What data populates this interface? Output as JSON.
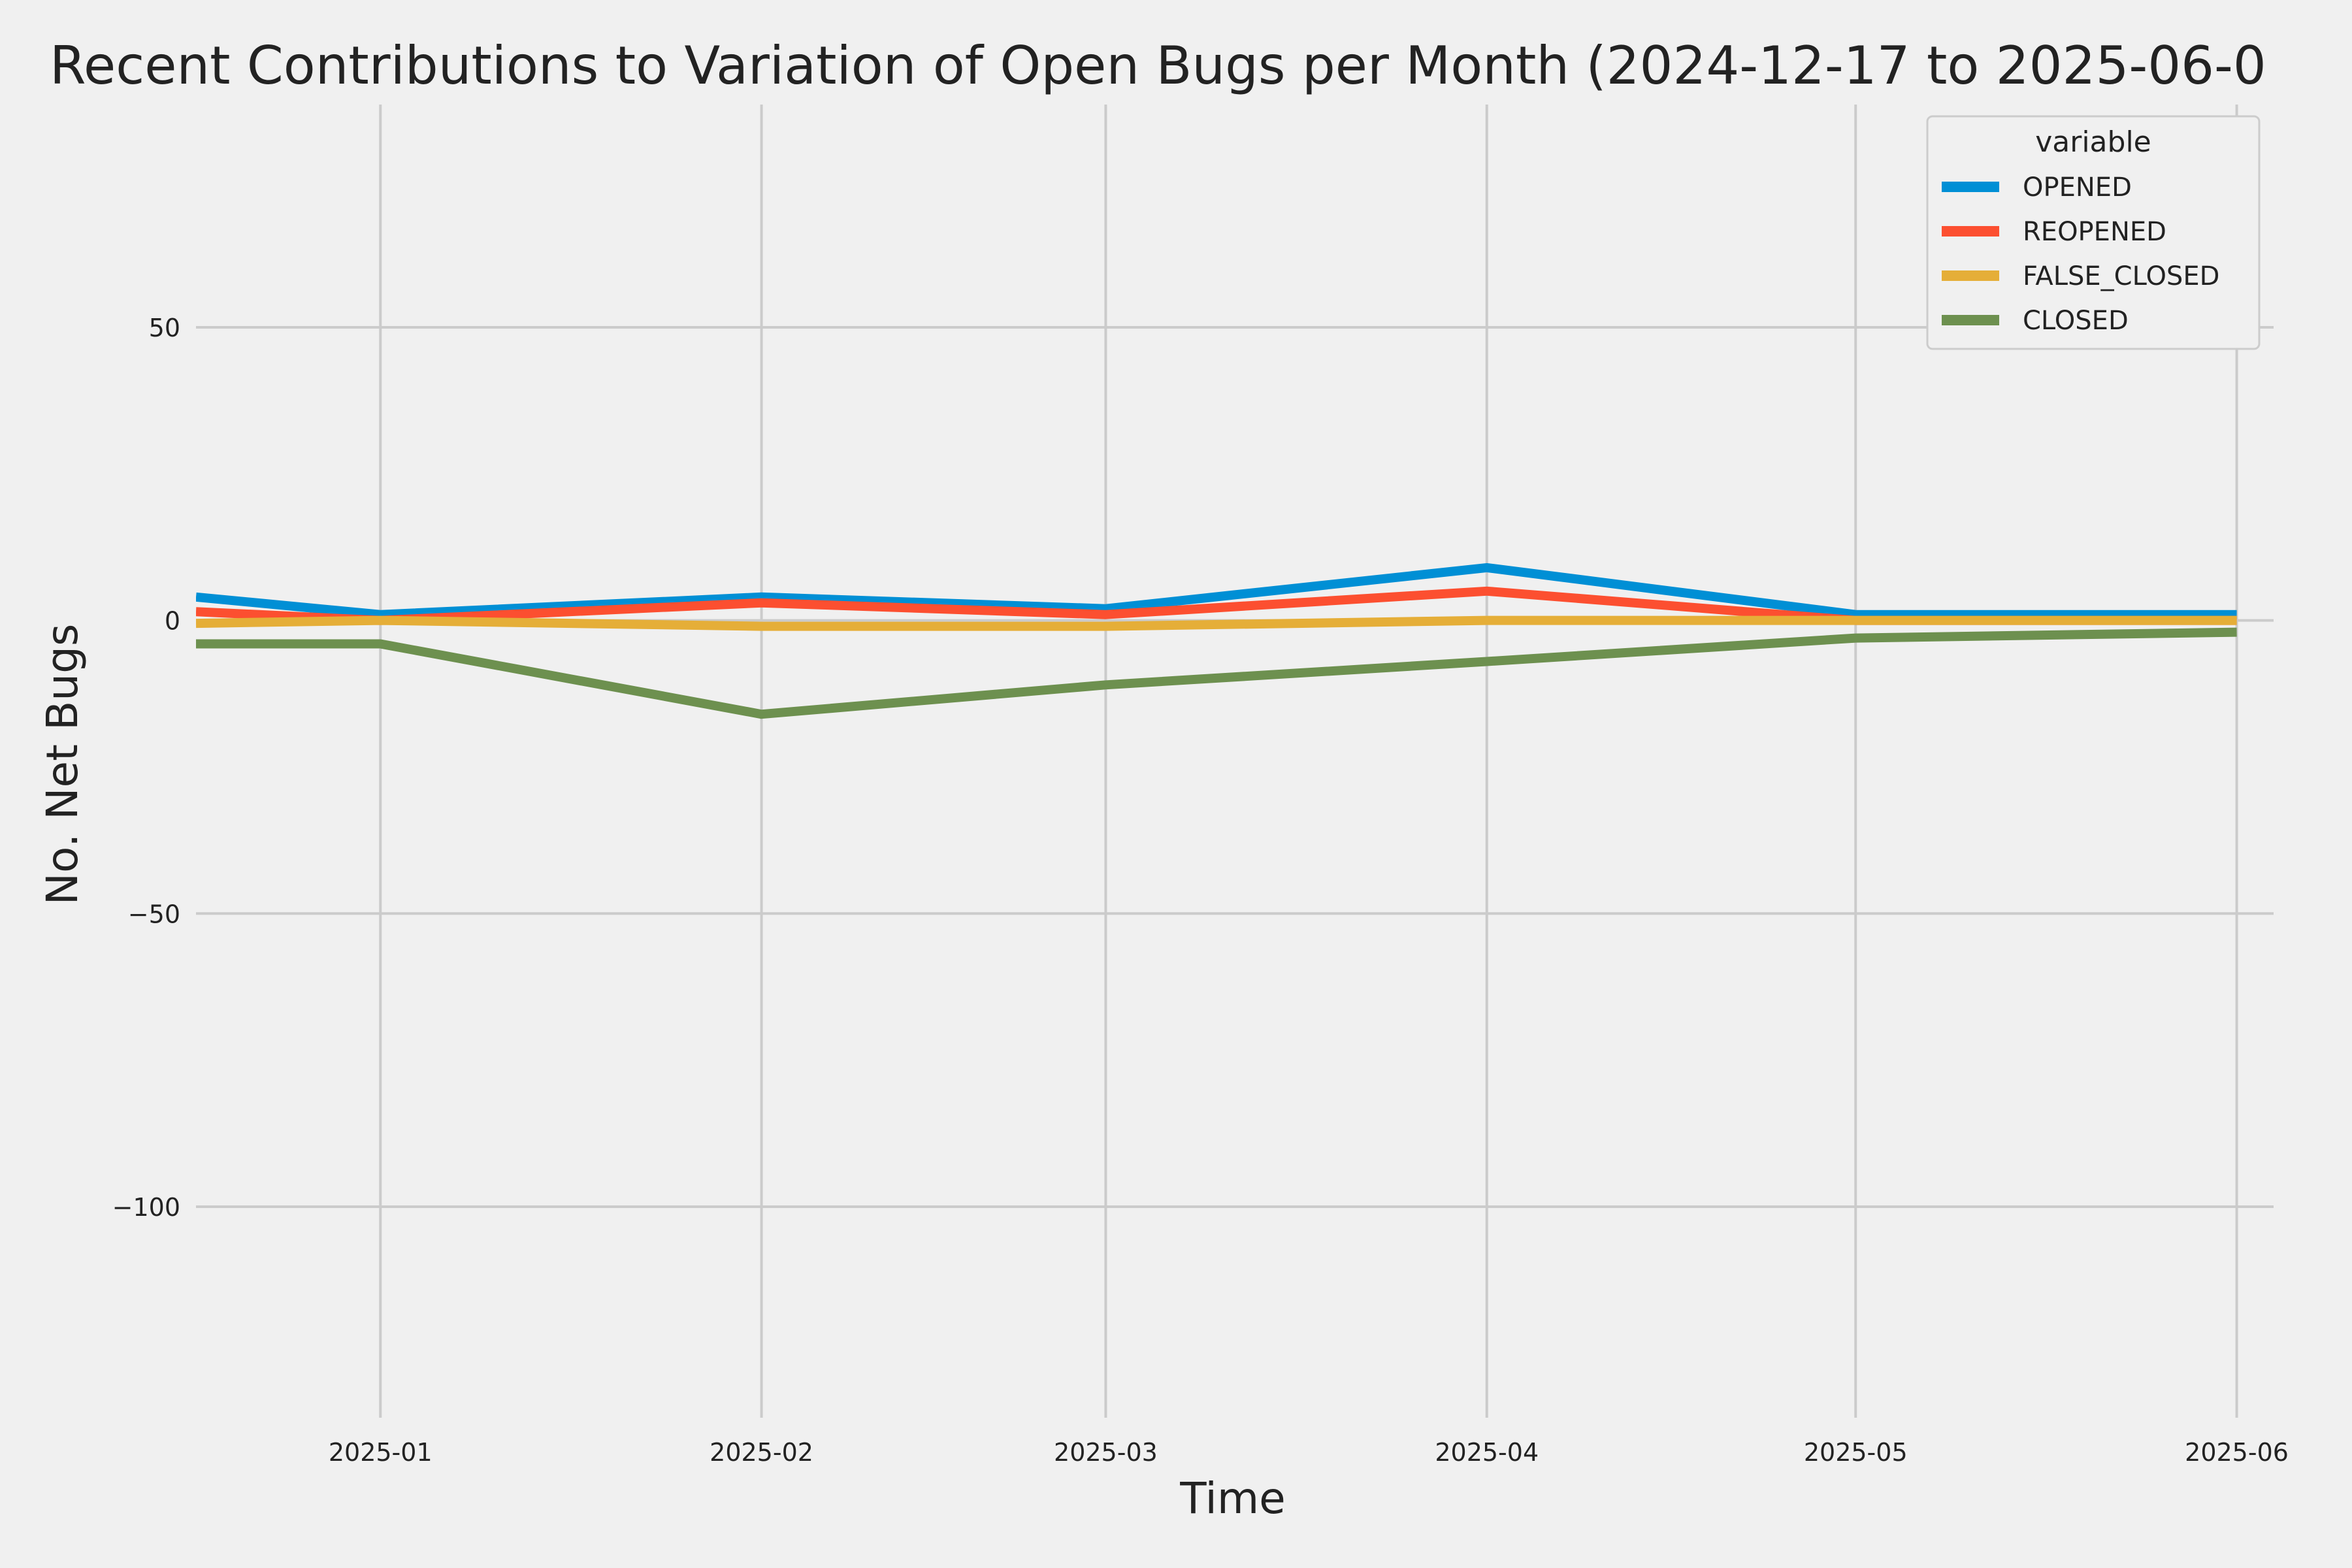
{
  "chart_data": {
    "type": "line",
    "title": "Recent Contributions to Variation of Open Bugs per Month (2024-12-17 to 2025-06-0",
    "xlabel": "Time",
    "ylabel": "No. Net Bugs",
    "x": [
      "2024-12-17",
      "2025-01-01",
      "2025-02-01",
      "2025-03-01",
      "2025-04-01",
      "2025-05-01",
      "2025-06-01"
    ],
    "xlim": [
      "2024-12-17",
      "2025-06-04"
    ],
    "ylim": [
      -136,
      88
    ],
    "x_ticks": [
      "2025-01-01",
      "2025-02-01",
      "2025-03-01",
      "2025-04-01",
      "2025-05-01",
      "2025-06-01"
    ],
    "x_tick_labels": [
      "2025-01",
      "2025-02",
      "2025-03",
      "2025-04",
      "2025-05",
      "2025-06"
    ],
    "y_ticks": [
      50,
      0,
      -50,
      -100
    ],
    "y_tick_labels": [
      "50",
      "0",
      "−50",
      "−100"
    ],
    "grid": true,
    "legend": {
      "title": "variable",
      "position": "top-right"
    },
    "series": [
      {
        "name": "OPENED",
        "color": "#008fd5",
        "values": [
          4,
          1,
          4,
          2,
          9,
          1,
          1
        ]
      },
      {
        "name": "REOPENED",
        "color": "#fc4f30",
        "values": [
          1.5,
          0,
          3,
          1,
          5,
          0,
          0
        ]
      },
      {
        "name": "FALSE_CLOSED",
        "color": "#e5ae38",
        "values": [
          -0.5,
          0,
          -1,
          -1,
          0,
          0,
          0
        ]
      },
      {
        "name": "CLOSED",
        "color": "#6d904f",
        "values": [
          -4,
          -4,
          -16,
          -11,
          -7,
          -3,
          -2
        ]
      }
    ]
  }
}
